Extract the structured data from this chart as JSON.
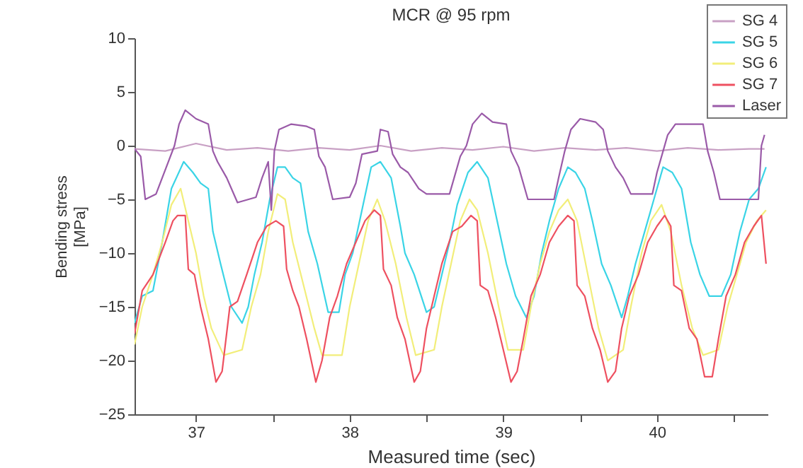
{
  "chart_data": {
    "type": "line",
    "title": "MCR @ 95 rpm",
    "xlabel": "Measured time (sec)",
    "ylabel": "Bending stress\n[MPa]",
    "xlim": [
      36.6,
      40.72
    ],
    "ylim": [
      -25,
      10
    ],
    "xticks": [
      37,
      {
        "value": 37.5,
        "label": null
      },
      38,
      {
        "value": 38.5,
        "label": null
      },
      39,
      {
        "value": 39.5,
        "label": null
      },
      40,
      {
        "value": 40.5,
        "label": null
      }
    ],
    "yticks": [
      -25,
      -20,
      -15,
      -10,
      -5,
      0,
      5,
      10
    ],
    "legend": "top right",
    "series": [
      {
        "name": "SG 4",
        "color": "#c8a0c4",
        "x": [
          36.6,
          36.8,
          37.0,
          37.2,
          37.4,
          37.6,
          37.8,
          38.0,
          38.2,
          38.4,
          38.6,
          38.8,
          39.0,
          39.2,
          39.4,
          39.6,
          39.8,
          40.0,
          40.2,
          40.4,
          40.6,
          40.7
        ],
        "values": [
          -0.3,
          -0.5,
          0.2,
          -0.4,
          -0.2,
          -0.5,
          -0.2,
          -0.4,
          0,
          -0.5,
          -0.2,
          -0.4,
          -0.1,
          -0.5,
          -0.2,
          -0.4,
          -0.2,
          -0.5,
          -0.2,
          -0.4,
          -0.3,
          -0.3
        ]
      },
      {
        "name": "SG 5",
        "color": "#3ad4e6",
        "x": [
          36.6,
          36.65,
          36.72,
          36.78,
          36.84,
          36.92,
          36.98,
          37.03,
          37.08,
          37.11,
          37.16,
          37.23,
          37.3,
          37.34,
          37.38,
          37.43,
          37.48,
          37.53,
          37.58,
          37.63,
          37.68,
          37.73,
          37.79,
          37.86,
          37.93,
          37.97,
          38.02,
          38.08,
          38.14,
          38.2,
          38.27,
          38.33,
          38.36,
          38.42,
          38.5,
          38.55,
          38.6,
          38.65,
          38.7,
          38.77,
          38.83,
          38.9,
          38.96,
          39.02,
          39.08,
          39.15,
          39.2,
          39.25,
          39.3,
          39.36,
          39.42,
          39.47,
          39.53,
          39.58,
          39.64,
          39.7,
          39.77,
          39.81,
          39.86,
          39.92,
          39.98,
          40.04,
          40.1,
          40.16,
          40.22,
          40.28,
          40.34,
          40.42,
          40.48,
          40.54,
          40.6,
          40.66,
          40.71
        ],
        "values": [
          -16.5,
          -14,
          -13.5,
          -9,
          -4,
          -1.5,
          -2.5,
          -3.5,
          -4,
          -8,
          -11,
          -15,
          -16.5,
          -15,
          -12,
          -9,
          -5,
          -2,
          -2,
          -3,
          -3.5,
          -8,
          -11,
          -15.5,
          -15.5,
          -12,
          -10,
          -6,
          -2,
          -1.5,
          -3,
          -7.5,
          -10,
          -12,
          -15.5,
          -15,
          -12,
          -9,
          -5.5,
          -2.5,
          -1.5,
          -3,
          -7,
          -11,
          -14,
          -16,
          -14,
          -10,
          -7,
          -4,
          -2,
          -2.5,
          -4,
          -7,
          -11,
          -13,
          -16,
          -14,
          -11,
          -8,
          -5,
          -2,
          -2.5,
          -4,
          -9,
          -12,
          -14,
          -14,
          -12,
          -8,
          -5,
          -4,
          -2
        ]
      },
      {
        "name": "SG 6",
        "color": "#f2ee7a",
        "x": [
          36.6,
          36.65,
          36.72,
          36.78,
          36.84,
          36.9,
          36.95,
          37.0,
          37.05,
          37.1,
          37.18,
          37.3,
          37.36,
          37.42,
          37.47,
          37.53,
          37.58,
          37.63,
          37.7,
          37.77,
          37.82,
          37.95,
          38.0,
          38.06,
          38.12,
          38.18,
          38.23,
          38.3,
          38.37,
          38.43,
          38.55,
          38.6,
          38.66,
          38.72,
          38.78,
          38.83,
          38.9,
          38.97,
          39.03,
          39.13,
          39.18,
          39.24,
          39.3,
          39.36,
          39.42,
          39.48,
          39.55,
          39.62,
          39.68,
          39.78,
          39.83,
          39.9,
          39.96,
          40.03,
          40.09,
          40.16,
          40.23,
          40.3,
          40.4,
          40.46,
          40.52,
          40.58,
          40.65,
          40.71
        ],
        "values": [
          -18.5,
          -15,
          -12,
          -9,
          -5.5,
          -4,
          -7,
          -10,
          -14,
          -17,
          -19.5,
          -19,
          -15,
          -12,
          -8,
          -4.5,
          -5,
          -9,
          -13,
          -17,
          -19.5,
          -19.5,
          -15,
          -11,
          -7,
          -5,
          -7,
          -11,
          -16,
          -19.5,
          -19,
          -15,
          -11,
          -7,
          -5,
          -6,
          -10,
          -15,
          -19,
          -19,
          -15,
          -11,
          -8,
          -6,
          -5,
          -7,
          -12,
          -17,
          -20,
          -19,
          -15,
          -10,
          -7,
          -5.5,
          -8,
          -13,
          -17,
          -19.5,
          -19,
          -15,
          -12,
          -9,
          -7,
          -6
        ]
      },
      {
        "name": "SG 7",
        "color": "#ee5060",
        "x": [
          36.6,
          36.65,
          36.72,
          36.8,
          36.85,
          36.88,
          36.93,
          36.95,
          36.99,
          37.03,
          37.08,
          37.13,
          37.17,
          37.22,
          37.27,
          37.33,
          37.4,
          37.46,
          37.52,
          37.57,
          37.59,
          37.63,
          37.67,
          37.72,
          37.78,
          37.82,
          37.87,
          37.92,
          37.98,
          38.04,
          38.1,
          38.16,
          38.2,
          38.22,
          38.27,
          38.31,
          38.36,
          38.42,
          38.46,
          38.5,
          38.55,
          38.6,
          38.67,
          38.73,
          38.79,
          38.83,
          38.85,
          38.9,
          38.95,
          39.0,
          39.05,
          39.09,
          39.13,
          39.18,
          39.24,
          39.3,
          39.36,
          39.42,
          39.46,
          39.48,
          39.53,
          39.58,
          39.63,
          39.68,
          39.73,
          39.77,
          39.82,
          39.88,
          39.94,
          40.0,
          40.05,
          40.09,
          40.11,
          40.16,
          40.21,
          40.26,
          40.31,
          40.36,
          40.4,
          40.45,
          40.51,
          40.57,
          40.63,
          40.68,
          40.71
        ],
        "values": [
          -17.5,
          -13.5,
          -12,
          -9,
          -7,
          -6.5,
          -6.5,
          -11.5,
          -12,
          -15,
          -18,
          -22,
          -21,
          -15,
          -14.5,
          -12,
          -9,
          -7.5,
          -7,
          -7.5,
          -11.5,
          -13.5,
          -15,
          -18,
          -22,
          -20,
          -16,
          -14,
          -11,
          -9,
          -7,
          -6,
          -6.5,
          -11.5,
          -13,
          -16,
          -18,
          -22,
          -21,
          -17,
          -14,
          -11,
          -8,
          -7.5,
          -6.5,
          -7,
          -13,
          -13.5,
          -16,
          -19,
          -22,
          -21,
          -18,
          -14,
          -12,
          -9,
          -7.5,
          -6.5,
          -7,
          -13,
          -14,
          -17,
          -19,
          -22,
          -21,
          -17,
          -14,
          -12,
          -9,
          -7.5,
          -6.5,
          -7.5,
          -13,
          -13.5,
          -17,
          -18,
          -21.5,
          -21.5,
          -18,
          -14,
          -12,
          -9,
          -7.5,
          -6.5,
          -11
        ]
      },
      {
        "name": "Laser",
        "color": "#9a5aa8",
        "x": [
          36.6,
          36.64,
          36.67,
          36.74,
          36.78,
          36.82,
          36.86,
          36.89,
          36.93,
          37.0,
          37.08,
          37.11,
          37.14,
          37.2,
          37.27,
          37.39,
          37.43,
          37.47,
          37.49,
          37.51,
          37.54,
          37.62,
          37.72,
          37.77,
          37.8,
          37.84,
          37.89,
          38.0,
          38.04,
          38.08,
          38.18,
          38.2,
          38.25,
          38.28,
          38.33,
          38.38,
          38.45,
          38.5,
          38.65,
          38.68,
          38.72,
          38.76,
          38.8,
          38.86,
          38.93,
          39.02,
          39.05,
          39.1,
          39.16,
          39.33,
          39.36,
          39.4,
          39.44,
          39.5,
          39.6,
          39.65,
          39.68,
          39.73,
          39.78,
          39.83,
          39.97,
          40.0,
          40.04,
          40.07,
          40.12,
          40.3,
          40.33,
          40.37,
          40.41,
          40.66,
          40.68,
          40.7
        ],
        "values": [
          -0.3,
          -1,
          -5,
          -4.5,
          -3,
          -1.5,
          0,
          2,
          3.3,
          2.5,
          2,
          -0.5,
          -1.5,
          -3,
          -5.3,
          -4.8,
          -3,
          -1.5,
          -6,
          -0.5,
          1.5,
          2,
          1.8,
          1.5,
          -1,
          -2,
          -5,
          -4.8,
          -3.5,
          -0.8,
          -0.5,
          1.5,
          1.3,
          -0.8,
          -2,
          -2.5,
          -4,
          -4.5,
          -4.5,
          -3,
          -1,
          0,
          2,
          3,
          2.2,
          2,
          -0.5,
          -2,
          -5,
          -5,
          -3,
          -0.5,
          1.5,
          2.5,
          2.2,
          1.5,
          -0.5,
          -2,
          -3,
          -4.5,
          -4.5,
          -2.5,
          -0.5,
          1,
          2,
          2,
          -0.5,
          -2.5,
          -5,
          -5,
          0,
          1
        ]
      }
    ]
  }
}
